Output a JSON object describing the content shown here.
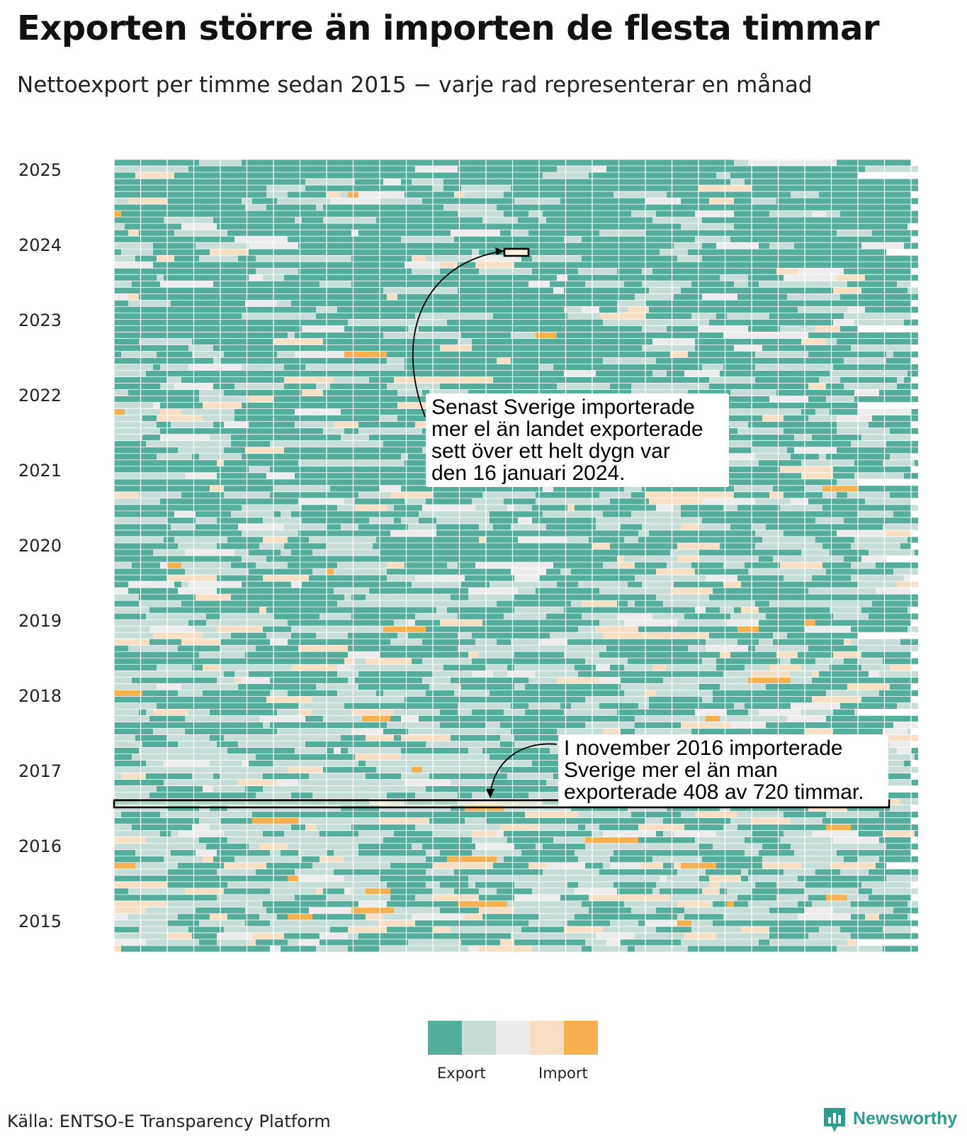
{
  "title": "Exporten större än importen de flesta timmar",
  "subtitle": "Nettoexport per timme sedan 2015 − varje rad representerar en månad",
  "chart_data": {
    "type": "heatmap",
    "y_tick_labels": [
      "2025",
      "2024",
      "2023",
      "2022",
      "2021",
      "2020",
      "2019",
      "2018",
      "2017",
      "2016",
      "2015"
    ],
    "rows": 124,
    "row_unit": "month",
    "cell_unit": "hour",
    "first_month": "2015-01",
    "last_month": "2025-04",
    "color_scale": [
      "#55ad9b",
      "#c6ded7",
      "#ececec",
      "#f7dfc6",
      "#f6b04f"
    ],
    "grid": true,
    "highlights": [
      {
        "label": "2024-01-16",
        "kind": "day"
      },
      {
        "label": "2016-11",
        "kind": "month"
      }
    ]
  },
  "annotations": {
    "jan2024": {
      "lines": [
        "Senast Sverige importerade",
        "mer el än landet exporterade",
        "sett över ett helt dygn var",
        "den 16 januari 2024."
      ]
    },
    "nov2016": {
      "lines": [
        "I november 2016 importerade",
        "Sverige mer el än man",
        "exporterade 408 av 720 timmar."
      ]
    }
  },
  "legend": {
    "colors": [
      "#55ad9b",
      "#c6ded7",
      "#ececec",
      "#f7dfc6",
      "#f6b04f"
    ],
    "labels": [
      "Export",
      "Import"
    ]
  },
  "source": "Källa: ENTSO-E Transparency Platform",
  "brand": {
    "name": "Newsworthy",
    "icon": "bar-chart-icon",
    "color": "#2a9d8f"
  }
}
